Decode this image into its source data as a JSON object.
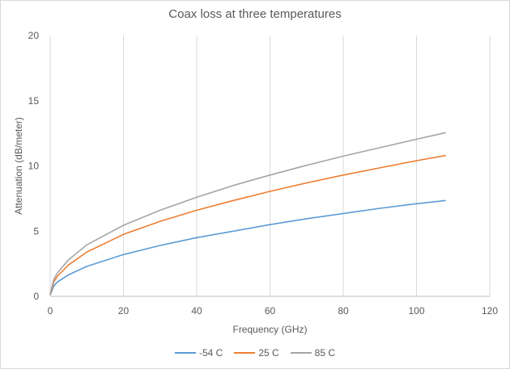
{
  "chart_data": {
    "type": "line",
    "title": "Coax loss at three temperatures",
    "xlabel": "Frequency (GHz)",
    "ylabel": "Attenuation (dB/meter)",
    "xlim": [
      0,
      120
    ],
    "ylim": [
      0,
      20
    ],
    "xticks": [
      0,
      20,
      40,
      60,
      80,
      100,
      120
    ],
    "yticks": [
      0,
      5,
      10,
      15,
      20
    ],
    "grid": "vertical",
    "legend_position": "bottom",
    "x": [
      0,
      1,
      2,
      5,
      10,
      20,
      30,
      40,
      50,
      60,
      70,
      80,
      90,
      100,
      108
    ],
    "series": [
      {
        "name": "-54 C",
        "color": "#5b9bd5",
        "values": [
          0.1,
          0.8,
          1.1,
          1.65,
          2.3,
          3.2,
          3.9,
          4.5,
          5.0,
          5.5,
          5.95,
          6.35,
          6.75,
          7.1,
          7.35
        ]
      },
      {
        "name": "25 C",
        "color": "#ed7d31",
        "values": [
          0.15,
          1.1,
          1.55,
          2.4,
          3.4,
          4.75,
          5.75,
          6.6,
          7.35,
          8.05,
          8.7,
          9.3,
          9.85,
          10.4,
          10.8
        ]
      },
      {
        "name": "85 C",
        "color": "#a5a5a5",
        "values": [
          0.2,
          1.3,
          1.8,
          2.8,
          3.95,
          5.45,
          6.6,
          7.6,
          8.5,
          9.3,
          10.05,
          10.75,
          11.4,
          12.05,
          12.55
        ]
      }
    ]
  }
}
